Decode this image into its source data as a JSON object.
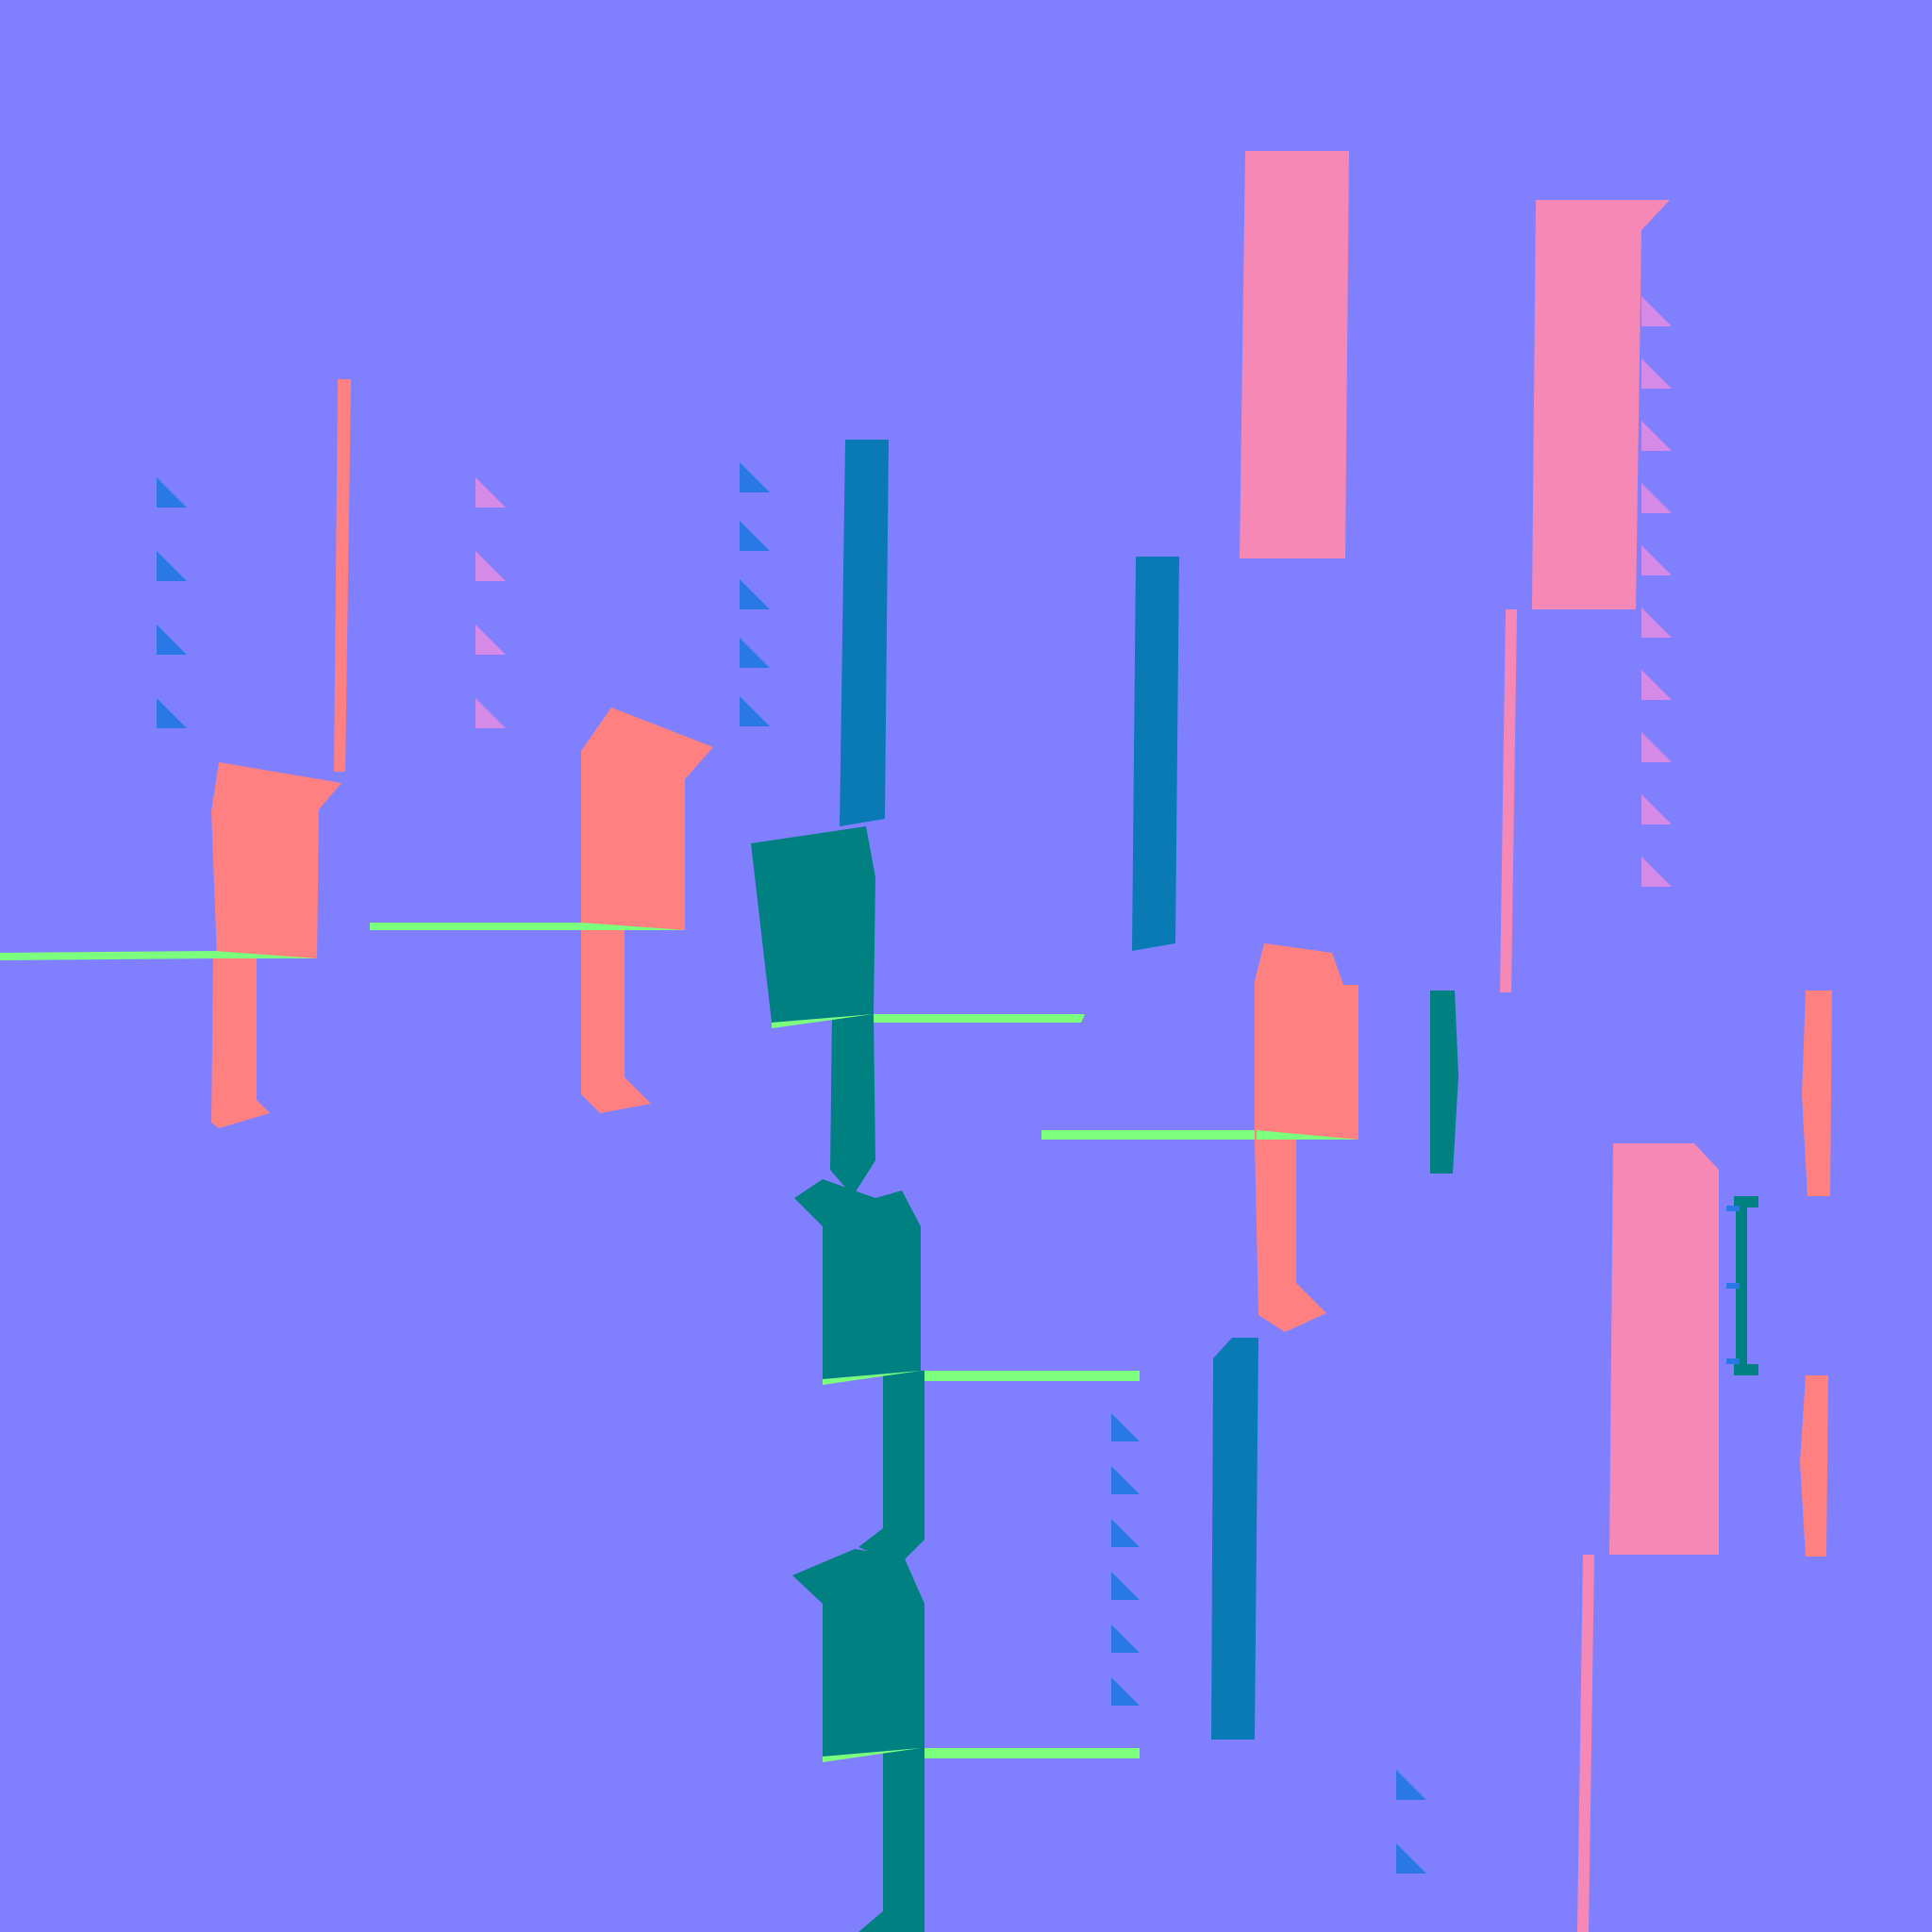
{
  "image": {
    "kind": "normal-map texture",
    "palette": {
      "background": "#8080ff",
      "salmon": "#ff8080",
      "pink": "#f588b4",
      "steel_blue": "#0a7ab4",
      "teal": "#008080",
      "bright_blue": "#2a78e6",
      "lime": "#7cff7c",
      "violet": "#d48ae6"
    },
    "shapes": [
      "salmon-block-upper-left",
      "salmon-block-center-left",
      "teal-block-stack-center",
      "steel-blue-bar-top-center",
      "steel-blue-bar-right",
      "pink-slab-top-right",
      "pink-slab-top-far-right",
      "salmon-block-center-right",
      "pink-slab-lower-right",
      "steel-blue-bar-bottom-center",
      "salmon-strips-right-edge"
    ]
  }
}
